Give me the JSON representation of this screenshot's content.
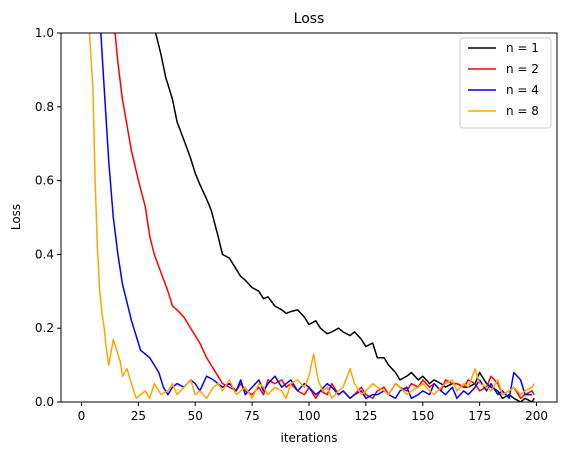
{
  "chart_data": {
    "type": "line",
    "title": "Loss",
    "xlabel": "iterations",
    "ylabel": "Loss",
    "xlim": [
      -9,
      209
    ],
    "ylim": [
      0,
      1.0
    ],
    "xticks": [
      0,
      25,
      50,
      75,
      100,
      125,
      150,
      175,
      200
    ],
    "yticks": [
      0.0,
      0.2,
      0.4,
      0.6,
      0.8,
      1.0
    ],
    "xtick_labels": [
      "0",
      "25",
      "50",
      "75",
      "100",
      "125",
      "150",
      "175",
      "200"
    ],
    "ytick_labels": [
      "0.0",
      "0.2",
      "0.4",
      "0.6",
      "0.8",
      "1.0"
    ],
    "grid": false,
    "legend_position": "top-right",
    "series": [
      {
        "name": "n = 1",
        "color": "#000000",
        "x": [
          30,
          33,
          35,
          37,
          40,
          42,
          45,
          48,
          50,
          52,
          55,
          57,
          60,
          62,
          65,
          68,
          70,
          72,
          75,
          78,
          80,
          82,
          85,
          88,
          90,
          92,
          95,
          98,
          100,
          103,
          105,
          108,
          110,
          113,
          115,
          118,
          120,
          123,
          125,
          128,
          130,
          133,
          135,
          138,
          140,
          143,
          145,
          148,
          150,
          153,
          155,
          158,
          160,
          163,
          165,
          168,
          170,
          173,
          175,
          178,
          180,
          183,
          185,
          188,
          190,
          193,
          195,
          198,
          199
        ],
        "y": [
          1.05,
          0.99,
          0.94,
          0.88,
          0.82,
          0.76,
          0.71,
          0.66,
          0.62,
          0.59,
          0.55,
          0.52,
          0.45,
          0.4,
          0.39,
          0.36,
          0.34,
          0.33,
          0.31,
          0.3,
          0.28,
          0.285,
          0.26,
          0.25,
          0.24,
          0.245,
          0.25,
          0.23,
          0.21,
          0.22,
          0.2,
          0.185,
          0.19,
          0.2,
          0.19,
          0.18,
          0.19,
          0.17,
          0.15,
          0.16,
          0.12,
          0.12,
          0.1,
          0.08,
          0.06,
          0.07,
          0.08,
          0.06,
          0.07,
          0.05,
          0.06,
          0.05,
          0.04,
          0.05,
          0.05,
          0.04,
          0.04,
          0.05,
          0.08,
          0.05,
          0.04,
          0.03,
          0.01,
          0.02,
          0.01,
          0.0,
          0.01,
          0.0,
          0.01
        ]
      },
      {
        "name": "n = 2",
        "color": "#ff0000",
        "x": [
          14,
          16,
          18,
          20,
          22,
          25,
          28,
          30,
          32,
          35,
          38,
          40,
          42,
          45,
          47,
          50,
          52,
          55,
          57,
          60,
          62,
          65,
          68,
          70,
          72,
          75,
          78,
          80,
          82,
          85,
          88,
          90,
          92,
          95,
          98,
          100,
          103,
          105,
          108,
          110,
          113,
          115,
          118,
          120,
          123,
          125,
          128,
          130,
          133,
          135,
          138,
          140,
          143,
          145,
          148,
          150,
          153,
          155,
          158,
          160,
          163,
          165,
          168,
          170,
          173,
          175,
          178,
          180,
          183,
          185,
          188,
          190,
          193,
          195,
          198,
          199
        ],
        "y": [
          1.05,
          0.92,
          0.82,
          0.75,
          0.68,
          0.6,
          0.53,
          0.45,
          0.4,
          0.35,
          0.3,
          0.26,
          0.25,
          0.23,
          0.21,
          0.18,
          0.16,
          0.12,
          0.1,
          0.07,
          0.05,
          0.04,
          0.03,
          0.05,
          0.03,
          0.02,
          0.04,
          0.02,
          0.06,
          0.05,
          0.06,
          0.04,
          0.05,
          0.03,
          0.02,
          0.04,
          0.01,
          0.03,
          0.02,
          0.05,
          0.02,
          0.03,
          0.01,
          0.02,
          0.04,
          0.02,
          0.01,
          0.03,
          0.04,
          0.02,
          0.05,
          0.04,
          0.03,
          0.05,
          0.04,
          0.06,
          0.04,
          0.05,
          0.03,
          0.06,
          0.05,
          0.05,
          0.04,
          0.06,
          0.05,
          0.03,
          0.04,
          0.07,
          0.05,
          0.02,
          0.03,
          0.04,
          0.01,
          0.02,
          0.03,
          0.02
        ]
      },
      {
        "name": "n = 4",
        "color": "#0000ff",
        "x": [
          8,
          10,
          12,
          14,
          16,
          18,
          20,
          22,
          24,
          26,
          28,
          30,
          32,
          34,
          36,
          38,
          40,
          42,
          45,
          48,
          50,
          52,
          55,
          58,
          60,
          62,
          65,
          68,
          70,
          72,
          75,
          78,
          80,
          82,
          85,
          88,
          90,
          92,
          95,
          98,
          100,
          103,
          105,
          108,
          110,
          113,
          115,
          118,
          120,
          123,
          125,
          128,
          130,
          133,
          135,
          138,
          140,
          143,
          145,
          148,
          150,
          153,
          155,
          158,
          160,
          163,
          165,
          168,
          170,
          173,
          175,
          178,
          180,
          183,
          185,
          188,
          190,
          193,
          195,
          198
        ],
        "y": [
          1.05,
          0.85,
          0.65,
          0.5,
          0.4,
          0.32,
          0.27,
          0.22,
          0.18,
          0.14,
          0.13,
          0.12,
          0.1,
          0.08,
          0.04,
          0.02,
          0.04,
          0.05,
          0.04,
          0.06,
          0.05,
          0.03,
          0.07,
          0.06,
          0.05,
          0.04,
          0.05,
          0.03,
          0.06,
          0.02,
          0.04,
          0.06,
          0.03,
          0.05,
          0.07,
          0.04,
          0.05,
          0.06,
          0.03,
          0.05,
          0.04,
          0.02,
          0.03,
          0.05,
          0.04,
          0.02,
          0.03,
          0.01,
          0.02,
          0.03,
          0.01,
          0.02,
          0.02,
          0.03,
          0.02,
          0.01,
          0.03,
          0.04,
          0.01,
          0.02,
          0.03,
          0.02,
          0.05,
          0.03,
          0.02,
          0.04,
          0.01,
          0.03,
          0.02,
          0.04,
          0.06,
          0.03,
          0.05,
          0.02,
          0.03,
          0.01,
          0.08,
          0.06,
          0.02,
          0.02
        ]
      },
      {
        "name": "n = 8",
        "color": "#ffa500",
        "x": [
          3,
          5,
          6,
          7,
          8,
          9,
          10,
          11,
          12,
          14,
          16,
          17,
          18,
          20,
          22,
          24,
          26,
          28,
          30,
          32,
          35,
          38,
          40,
          42,
          45,
          48,
          50,
          52,
          55,
          58,
          60,
          62,
          65,
          68,
          70,
          72,
          75,
          78,
          80,
          82,
          85,
          88,
          90,
          92,
          95,
          98,
          100,
          102,
          104,
          106,
          108,
          110,
          113,
          115,
          118,
          120,
          123,
          125,
          128,
          130,
          133,
          135,
          138,
          140,
          143,
          145,
          148,
          150,
          153,
          155,
          158,
          160,
          163,
          165,
          168,
          170,
          173,
          175,
          178,
          180,
          183,
          185,
          188,
          190,
          193,
          195,
          198,
          199
        ],
        "y": [
          1.05,
          0.85,
          0.6,
          0.42,
          0.3,
          0.24,
          0.2,
          0.14,
          0.1,
          0.17,
          0.13,
          0.11,
          0.07,
          0.09,
          0.05,
          0.01,
          0.02,
          0.03,
          0.01,
          0.05,
          0.02,
          0.03,
          0.05,
          0.02,
          0.04,
          0.06,
          0.02,
          0.03,
          0.01,
          0.04,
          0.05,
          0.03,
          0.06,
          0.02,
          0.03,
          0.04,
          0.01,
          0.05,
          0.04,
          0.02,
          0.04,
          0.03,
          0.01,
          0.05,
          0.06,
          0.04,
          0.07,
          0.13,
          0.06,
          0.03,
          0.04,
          0.01,
          0.03,
          0.04,
          0.09,
          0.05,
          0.02,
          0.03,
          0.05,
          0.04,
          0.03,
          0.02,
          0.05,
          0.04,
          0.02,
          0.03,
          0.04,
          0.05,
          0.03,
          0.02,
          0.04,
          0.05,
          0.06,
          0.03,
          0.05,
          0.04,
          0.09,
          0.05,
          0.04,
          0.03,
          0.06,
          0.02,
          0.03,
          0.04,
          0.02,
          0.03,
          0.04,
          0.05
        ]
      }
    ]
  }
}
